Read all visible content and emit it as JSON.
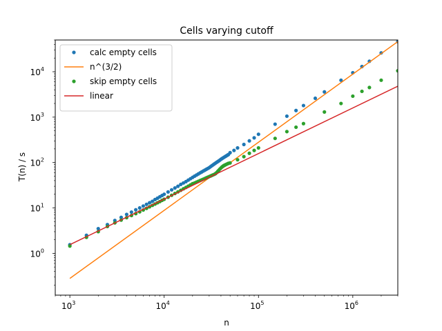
{
  "chart_data": {
    "type": "scatter",
    "title": "Cells varying cutoff",
    "xlabel": "n",
    "ylabel": "T(n) / s",
    "xscale": "log",
    "yscale": "log",
    "xlim": [
      700,
      3000000
    ],
    "ylim": [
      0.12,
      50000
    ],
    "x_ticks": [
      {
        "value": 1000,
        "base": "10",
        "exp": "3"
      },
      {
        "value": 10000,
        "base": "10",
        "exp": "4"
      },
      {
        "value": 100000,
        "base": "10",
        "exp": "5"
      },
      {
        "value": 1000000,
        "base": "10",
        "exp": "6"
      }
    ],
    "y_ticks": [
      {
        "value": 1,
        "base": "10",
        "exp": "0"
      },
      {
        "value": 10,
        "base": "10",
        "exp": "1"
      },
      {
        "value": 100,
        "base": "10",
        "exp": "2"
      },
      {
        "value": 1000,
        "base": "10",
        "exp": "3"
      },
      {
        "value": 10000,
        "base": "10",
        "exp": "4"
      }
    ],
    "grid": false,
    "legend_position": "top-left",
    "series": [
      {
        "name": "calc empty cells",
        "type": "scatter",
        "color": "#1f77b4",
        "points": [
          [
            1000,
            1.55
          ],
          [
            1500,
            2.5
          ],
          [
            2000,
            3.5
          ],
          [
            2500,
            4.3
          ],
          [
            3000,
            5.3
          ],
          [
            3500,
            6.2
          ],
          [
            4000,
            7.2
          ],
          [
            4500,
            8.1
          ],
          [
            5000,
            9.1
          ],
          [
            5500,
            10.0
          ],
          [
            6000,
            11.0
          ],
          [
            6500,
            12.0
          ],
          [
            7000,
            13.0
          ],
          [
            7500,
            14.0
          ],
          [
            8000,
            15.3
          ],
          [
            8500,
            16.4
          ],
          [
            9000,
            17.6
          ],
          [
            9500,
            18.8
          ],
          [
            10000,
            20.0
          ],
          [
            11000,
            22.5
          ],
          [
            12000,
            25.0
          ],
          [
            13000,
            27.5
          ],
          [
            14000,
            30.0
          ],
          [
            15000,
            33.0
          ],
          [
            16000,
            35.5
          ],
          [
            17000,
            38.0
          ],
          [
            18000,
            41.0
          ],
          [
            19000,
            44.0
          ],
          [
            20000,
            47.0
          ],
          [
            21000,
            50.0
          ],
          [
            22000,
            53.0
          ],
          [
            23000,
            56.0
          ],
          [
            24000,
            59.0
          ],
          [
            25000,
            62.0
          ],
          [
            26000,
            65.0
          ],
          [
            27000,
            68.0
          ],
          [
            28000,
            71.0
          ],
          [
            29000,
            74.0
          ],
          [
            30000,
            77.0
          ],
          [
            31000,
            81.0
          ],
          [
            32000,
            85.0
          ],
          [
            33000,
            89.0
          ],
          [
            34000,
            93.0
          ],
          [
            35000,
            97.0
          ],
          [
            36000,
            101
          ],
          [
            37000,
            105
          ],
          [
            38000,
            109
          ],
          [
            39000,
            113
          ],
          [
            40000,
            118
          ],
          [
            41000,
            122
          ],
          [
            42000,
            126
          ],
          [
            43000,
            130
          ],
          [
            44000,
            134
          ],
          [
            45000,
            138
          ],
          [
            46000,
            142
          ],
          [
            47000,
            146
          ],
          [
            48000,
            150
          ],
          [
            50000,
            165
          ],
          [
            55000,
            185
          ],
          [
            60000,
            210
          ],
          [
            70000,
            250
          ],
          [
            80000,
            300
          ],
          [
            90000,
            350
          ],
          [
            100000,
            420
          ],
          [
            150000,
            700
          ],
          [
            200000,
            1050
          ],
          [
            250000,
            1400
          ],
          [
            300000,
            1800
          ],
          [
            400000,
            2600
          ],
          [
            500000,
            3600
          ],
          [
            750000,
            6500
          ],
          [
            1000000,
            9500
          ],
          [
            1250000,
            13000
          ],
          [
            1500000,
            17000
          ],
          [
            2000000,
            26000
          ],
          [
            3000000,
            46000
          ]
        ]
      },
      {
        "name": "n^(3/2)",
        "type": "line",
        "color": "#ff7f0e",
        "points": [
          [
            1000,
            0.28
          ],
          [
            3000000,
            46000
          ]
        ]
      },
      {
        "name": "skip empty cells",
        "type": "scatter",
        "color": "#2ca02c",
        "points": [
          [
            1000,
            1.45
          ],
          [
            1500,
            2.25
          ],
          [
            2000,
            3.0
          ],
          [
            2500,
            3.9
          ],
          [
            3000,
            4.7
          ],
          [
            3500,
            5.4
          ],
          [
            4000,
            6.1
          ],
          [
            4500,
            6.8
          ],
          [
            5000,
            7.5
          ],
          [
            5500,
            8.2
          ],
          [
            6000,
            9.0
          ],
          [
            6500,
            9.8
          ],
          [
            7000,
            10.6
          ],
          [
            7500,
            11.4
          ],
          [
            8000,
            12.2
          ],
          [
            8500,
            13.0
          ],
          [
            9000,
            13.8
          ],
          [
            9500,
            14.7
          ],
          [
            10000,
            15.5
          ],
          [
            11000,
            17.2
          ],
          [
            12000,
            19.0
          ],
          [
            13000,
            20.8
          ],
          [
            14000,
            22.6
          ],
          [
            15000,
            24.5
          ],
          [
            16000,
            26.4
          ],
          [
            17000,
            28.3
          ],
          [
            18000,
            30.2
          ],
          [
            19000,
            32.2
          ],
          [
            20000,
            34.2
          ],
          [
            21000,
            35.5
          ],
          [
            22000,
            37.0
          ],
          [
            23000,
            38.5
          ],
          [
            24000,
            40.0
          ],
          [
            25000,
            41.5
          ],
          [
            26000,
            43.0
          ],
          [
            27000,
            44.5
          ],
          [
            28000,
            46.0
          ],
          [
            29000,
            47.5
          ],
          [
            30000,
            49.0
          ],
          [
            31000,
            50.5
          ],
          [
            32000,
            52.0
          ],
          [
            33000,
            53.5
          ],
          [
            34000,
            55.0
          ],
          [
            35000,
            57.0
          ],
          [
            36000,
            60.0
          ],
          [
            37000,
            64.0
          ],
          [
            38000,
            68.0
          ],
          [
            39000,
            72.0
          ],
          [
            40000,
            76.0
          ],
          [
            41000,
            80.0
          ],
          [
            42000,
            83.0
          ],
          [
            43000,
            86.0
          ],
          [
            44000,
            88.0
          ],
          [
            45000,
            90.0
          ],
          [
            46000,
            92.0
          ],
          [
            47000,
            94.0
          ],
          [
            48000,
            96.0
          ],
          [
            50000,
            98.0
          ],
          [
            60000,
            115
          ],
          [
            70000,
            135
          ],
          [
            80000,
            160
          ],
          [
            90000,
            185
          ],
          [
            100000,
            210
          ],
          [
            150000,
            340
          ],
          [
            200000,
            480
          ],
          [
            250000,
            600
          ],
          [
            300000,
            720
          ],
          [
            500000,
            1300
          ],
          [
            750000,
            2000
          ],
          [
            1000000,
            2900
          ],
          [
            1250000,
            3700
          ],
          [
            1500000,
            4500
          ],
          [
            2000000,
            6500
          ],
          [
            3000000,
            10500
          ]
        ]
      },
      {
        "name": "linear",
        "type": "line",
        "color": "#d62728",
        "points": [
          [
            1000,
            1.55
          ],
          [
            3000000,
            4800
          ]
        ]
      }
    ]
  }
}
